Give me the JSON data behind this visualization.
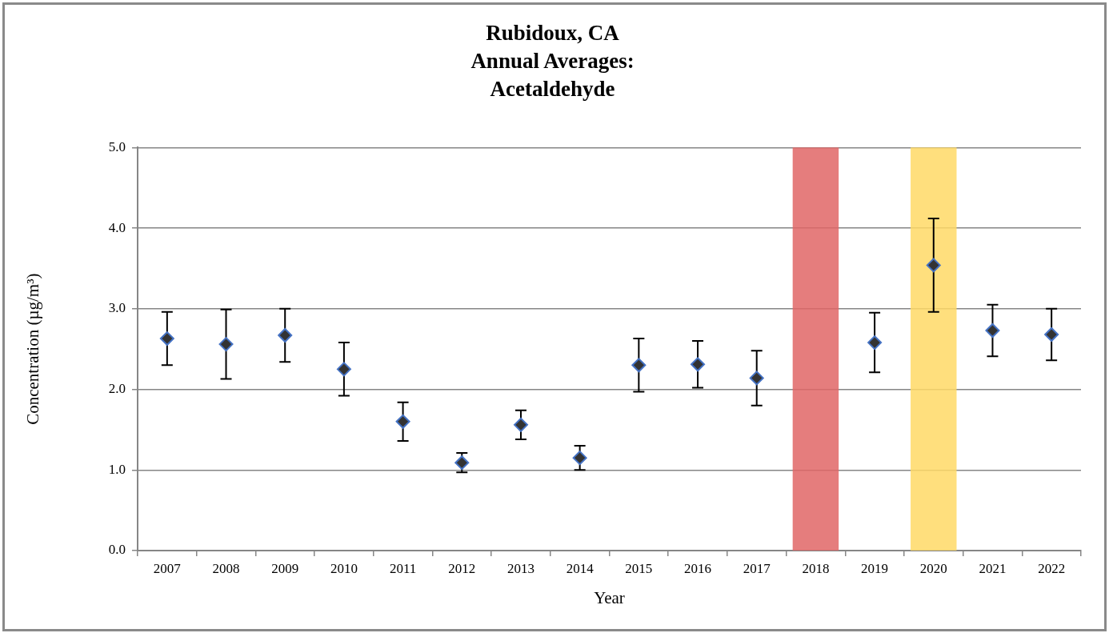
{
  "chart_data": {
    "type": "scatter",
    "title": "Rubidoux, CA\nAnnual Averages:\nAcetaldehyde",
    "xlabel": "Year",
    "ylabel": "Concentration (µg/m³)",
    "categories": [
      "2007",
      "2008",
      "2009",
      "2010",
      "2011",
      "2012",
      "2013",
      "2014",
      "2015",
      "2016",
      "2017",
      "2018",
      "2019",
      "2020",
      "2021",
      "2022"
    ],
    "values": [
      2.63,
      2.56,
      2.67,
      2.25,
      1.6,
      1.09,
      1.56,
      1.15,
      2.3,
      2.31,
      2.14,
      null,
      2.58,
      3.54,
      2.73,
      2.68
    ],
    "errors": [
      0.33,
      0.43,
      0.33,
      0.33,
      0.24,
      0.12,
      0.18,
      0.15,
      0.33,
      0.29,
      0.34,
      null,
      0.37,
      0.58,
      0.32,
      0.32
    ],
    "color": "#333333",
    "marker": "diamond",
    "ylim": [
      0,
      5
    ],
    "yticks": [
      {
        "value": 0,
        "label": "0.0"
      },
      {
        "value": 1,
        "label": "1.0"
      },
      {
        "value": 2,
        "label": "2.0"
      },
      {
        "value": 3,
        "label": "3.0"
      },
      {
        "value": 4,
        "label": "4.0"
      },
      {
        "value": 5,
        "label": "5.0"
      }
    ],
    "grid": "y",
    "bands": [
      {
        "axis": "x",
        "from": "2018",
        "to": "2018",
        "color": "#e06666"
      },
      {
        "axis": "x",
        "from": "2020",
        "to": "2020",
        "color": "#ffd966"
      }
    ]
  }
}
